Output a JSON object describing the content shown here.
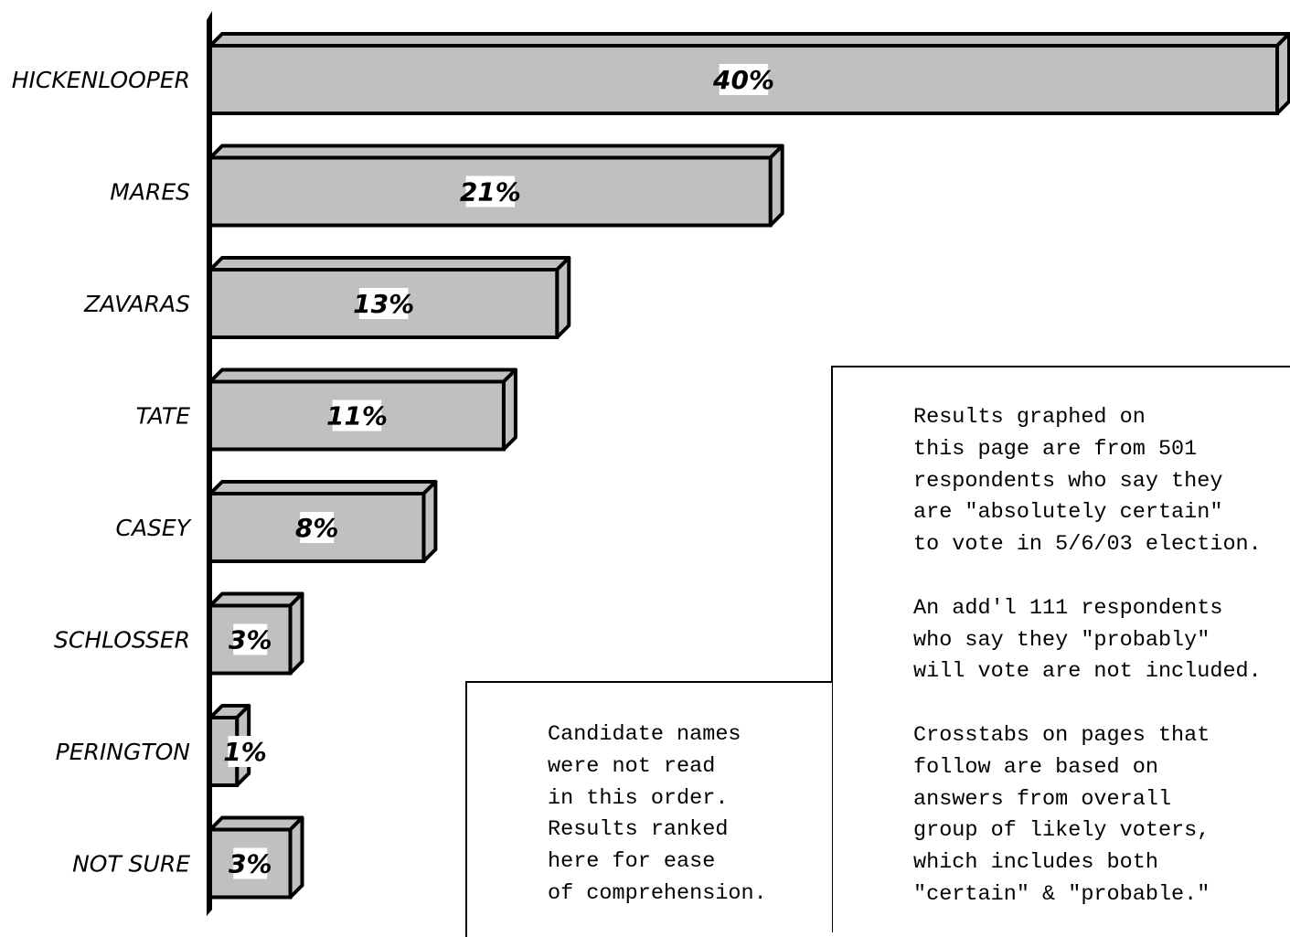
{
  "chart_data": {
    "type": "bar",
    "orientation": "horizontal",
    "categories": [
      "HICKENLOOPER",
      "MARES",
      "ZAVARAS",
      "TATE",
      "CASEY",
      "SCHLOSSER",
      "PERINGTON",
      "NOT SURE"
    ],
    "values": [
      40,
      21,
      13,
      11,
      8,
      3,
      1,
      3
    ],
    "value_labels": [
      "40%",
      "21%",
      "13%",
      "11%",
      "8%",
      "3%",
      "1%",
      "3%"
    ],
    "xlim": [
      0,
      40
    ],
    "grid": false,
    "legend": "none",
    "bar_color": "#c0c0c0",
    "bar_shadow_color": "#000000"
  },
  "notes": {
    "right": {
      "paragraphs": [
        "Results graphed on\nthis page are from 501\nrespondents who say they\nare \"absolutely certain\"\nto vote in 5/6/03 election.",
        "An add'l 111 respondents\nwho say they \"probably\"\nwill vote are not included.",
        "Crosstabs on pages that\nfollow are based on\nanswers from overall\ngroup of likely voters,\nwhich includes both\n\"certain\" & \"probable.\""
      ]
    },
    "left": {
      "paragraphs": [
        "Candidate names\nwere not read\nin this order.\nResults ranked\nhere for ease\nof comprehension."
      ]
    }
  }
}
